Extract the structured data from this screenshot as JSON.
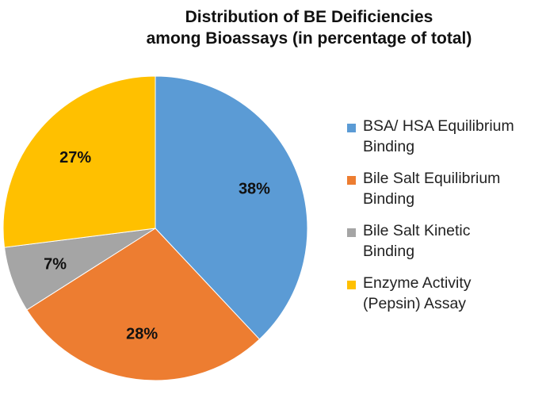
{
  "colors": {
    "slices": [
      "#5b9bd5",
      "#ed7d31",
      "#a5a5a5",
      "#ffc000"
    ]
  },
  "chart_data": {
    "type": "pie",
    "title": {
      "line1": "Distribution of BE Deificiencies",
      "line2": "among Bioassays (in percentage of total)"
    },
    "slices": [
      {
        "label_line1": "BSA/ HSA Equilibrium",
        "label_line2": "Binding",
        "value": 38,
        "display": "38%"
      },
      {
        "label_line1": "Bile Salt Equilibrium",
        "label_line2": "Binding",
        "value": 28,
        "display": "28%"
      },
      {
        "label_line1": "Bile Salt Kinetic",
        "label_line2": "Binding",
        "value": 7,
        "display": "7%"
      },
      {
        "label_line1": "Enzyme Activity",
        "label_line2": "(Pepsin) Assay",
        "value": 27,
        "display": "27%"
      }
    ],
    "start_angle": "12 o'clock",
    "direction": "clockwise",
    "legend_position": "right"
  }
}
